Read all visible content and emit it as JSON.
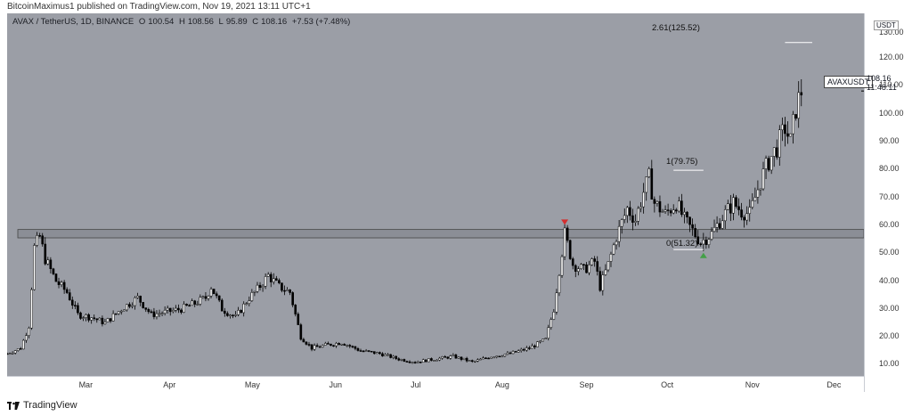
{
  "header": {
    "publish_line": "BitcoinMaximus1 published on TradingView.com, Nov 19, 2021 13:11 UTC+1"
  },
  "symbol_info": {
    "name": "AVAX / TetherUS, 1D, BINANCE",
    "open_label": "O",
    "open": "100.54",
    "high_label": "H",
    "high": "108.56",
    "low_label": "L",
    "low": "95.89",
    "close_label": "C",
    "close": "108.16",
    "change": "+7.53 (+7.48%)"
  },
  "price_axis": {
    "currency": "USDT",
    "last_price": "108.16",
    "countdown": "11:48:11",
    "symbol_tag": "AVAXUSDT"
  },
  "footer": {
    "brand": "TradingView"
  },
  "annotations": {
    "fib_ext": "2.61(125.52)",
    "fib_one": "1(79.75)",
    "fib_zero": "0(51.32)"
  },
  "colors": {
    "background": "#9b9ea6",
    "candle_up": "#ffffff",
    "candle_down": "#000000",
    "resistance_zone": "#8b8e96",
    "marker_top": "#d32f2f",
    "marker_bottom": "#43a047"
  },
  "chart_data": {
    "type": "candlestick",
    "title": "AVAX / TetherUS, 1D, BINANCE",
    "xlabel": "",
    "ylabel": "",
    "ylim": [
      6,
      136
    ],
    "y_ticks": [
      10,
      20,
      30,
      40,
      50,
      60,
      70,
      80,
      90,
      100,
      110,
      120,
      130
    ],
    "y_tick_labels": [
      "10.00",
      "20.00",
      "30.00",
      "40.00",
      "50.00",
      "60.00",
      "70.00",
      "80.00",
      "90.00",
      "100.00",
      "110.00",
      "120.00",
      "130.00"
    ],
    "x_tick_labels": [
      "Mar",
      "Apr",
      "May",
      "Jun",
      "Jul",
      "Aug",
      "Sep",
      "Oct",
      "Nov",
      "Dec"
    ],
    "x_tick_dates": [
      "2021-03-01",
      "2021-04-01",
      "2021-05-01",
      "2021-06-01",
      "2021-07-01",
      "2021-08-01",
      "2021-09-01",
      "2021-10-01",
      "2021-11-01",
      "2021-12-01"
    ],
    "x_range": [
      "2021-01-31",
      "2021-12-12"
    ],
    "closes": [
      {
        "date": "2021-01-31",
        "close": 14
      },
      {
        "date": "2021-02-05",
        "close": 16
      },
      {
        "date": "2021-02-08",
        "close": 24
      },
      {
        "date": "2021-02-10",
        "close": 52
      },
      {
        "date": "2021-02-12",
        "close": 56
      },
      {
        "date": "2021-02-14",
        "close": 48
      },
      {
        "date": "2021-02-18",
        "close": 40
      },
      {
        "date": "2021-02-22",
        "close": 36
      },
      {
        "date": "2021-02-26",
        "close": 28
      },
      {
        "date": "2021-03-03",
        "close": 27
      },
      {
        "date": "2021-03-08",
        "close": 25
      },
      {
        "date": "2021-03-14",
        "close": 30
      },
      {
        "date": "2021-03-20",
        "close": 34
      },
      {
        "date": "2021-03-25",
        "close": 28
      },
      {
        "date": "2021-03-31",
        "close": 29
      },
      {
        "date": "2021-04-05",
        "close": 30
      },
      {
        "date": "2021-04-10",
        "close": 32
      },
      {
        "date": "2021-04-14",
        "close": 34
      },
      {
        "date": "2021-04-16",
        "close": 38
      },
      {
        "date": "2021-04-20",
        "close": 30
      },
      {
        "date": "2021-04-25",
        "close": 27
      },
      {
        "date": "2021-04-30",
        "close": 34
      },
      {
        "date": "2021-05-03",
        "close": 37
      },
      {
        "date": "2021-05-07",
        "close": 42
      },
      {
        "date": "2021-05-11",
        "close": 38
      },
      {
        "date": "2021-05-15",
        "close": 36
      },
      {
        "date": "2021-05-19",
        "close": 20
      },
      {
        "date": "2021-05-23",
        "close": 16
      },
      {
        "date": "2021-05-28",
        "close": 17
      },
      {
        "date": "2021-06-03",
        "close": 18
      },
      {
        "date": "2021-06-10",
        "close": 15
      },
      {
        "date": "2021-06-17",
        "close": 14
      },
      {
        "date": "2021-06-24",
        "close": 12
      },
      {
        "date": "2021-06-30",
        "close": 11
      },
      {
        "date": "2021-07-07",
        "close": 12
      },
      {
        "date": "2021-07-14",
        "close": 13
      },
      {
        "date": "2021-07-21",
        "close": 11
      },
      {
        "date": "2021-07-28",
        "close": 13
      },
      {
        "date": "2021-08-04",
        "close": 14
      },
      {
        "date": "2021-08-11",
        "close": 16
      },
      {
        "date": "2021-08-17",
        "close": 19
      },
      {
        "date": "2021-08-20",
        "close": 30
      },
      {
        "date": "2021-08-22",
        "close": 44
      },
      {
        "date": "2021-08-24",
        "close": 57
      },
      {
        "date": "2021-08-27",
        "close": 46
      },
      {
        "date": "2021-08-31",
        "close": 44
      },
      {
        "date": "2021-09-04",
        "close": 47
      },
      {
        "date": "2021-09-06",
        "close": 38
      },
      {
        "date": "2021-09-09",
        "close": 46
      },
      {
        "date": "2021-09-12",
        "close": 56
      },
      {
        "date": "2021-09-16",
        "close": 66
      },
      {
        "date": "2021-09-19",
        "close": 62
      },
      {
        "date": "2021-09-22",
        "close": 72
      },
      {
        "date": "2021-09-24",
        "close": 77
      },
      {
        "date": "2021-09-26",
        "close": 68
      },
      {
        "date": "2021-09-30",
        "close": 64
      },
      {
        "date": "2021-10-04",
        "close": 68
      },
      {
        "date": "2021-10-07",
        "close": 62
      },
      {
        "date": "2021-10-10",
        "close": 58
      },
      {
        "date": "2021-10-13",
        "close": 54
      },
      {
        "date": "2021-10-17",
        "close": 57
      },
      {
        "date": "2021-10-21",
        "close": 63
      },
      {
        "date": "2021-10-25",
        "close": 68
      },
      {
        "date": "2021-10-28",
        "close": 65
      },
      {
        "date": "2021-10-31",
        "close": 64
      },
      {
        "date": "2021-11-04",
        "close": 76
      },
      {
        "date": "2021-11-07",
        "close": 83
      },
      {
        "date": "2021-11-10",
        "close": 88
      },
      {
        "date": "2021-11-13",
        "close": 95
      },
      {
        "date": "2021-11-15",
        "close": 90
      },
      {
        "date": "2021-11-17",
        "close": 102
      },
      {
        "date": "2021-11-19",
        "close": 108.16
      }
    ],
    "resistance_zone": [
      55.5,
      58.5
    ],
    "fib_levels": [
      {
        "label": "2.61(125.52)",
        "value": 125.52,
        "start": "2021-11-13",
        "end": "2021-11-23"
      },
      {
        "label": "1(79.75)",
        "value": 79.75,
        "start": "2021-10-03",
        "end": "2021-10-14"
      },
      {
        "label": "0(51.32)",
        "value": 51.32,
        "start": "2021-10-03",
        "end": "2021-10-14"
      }
    ],
    "markers": [
      {
        "type": "top",
        "date": "2021-08-24",
        "value": 60.5
      },
      {
        "type": "bottom",
        "date": "2021-10-14",
        "value": 49.5
      }
    ],
    "last_price": 108.16
  }
}
